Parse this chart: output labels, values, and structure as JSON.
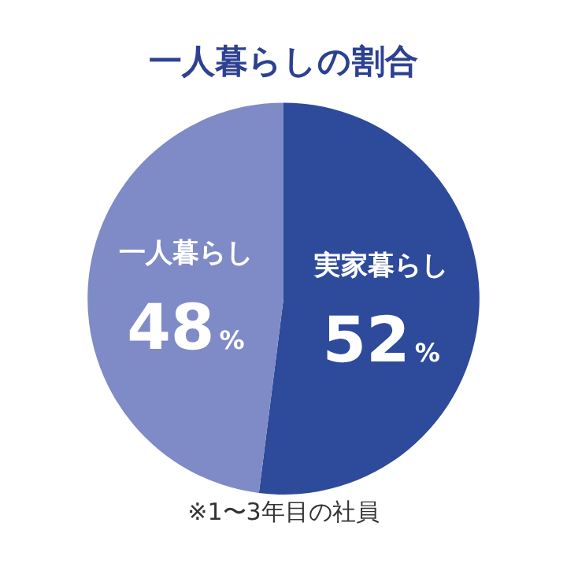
{
  "chart_data": {
    "type": "pie",
    "title": "一人暮らしの割合",
    "categories": [
      "実家暮らし",
      "一人暮らし"
    ],
    "values": [
      52,
      48
    ],
    "colors": [
      "#2d4a9b",
      "#7f8bc6"
    ],
    "value_labels": [
      "52%",
      "48%"
    ],
    "legend": false,
    "annotations": [
      "※1〜3年目の社員"
    ]
  }
}
